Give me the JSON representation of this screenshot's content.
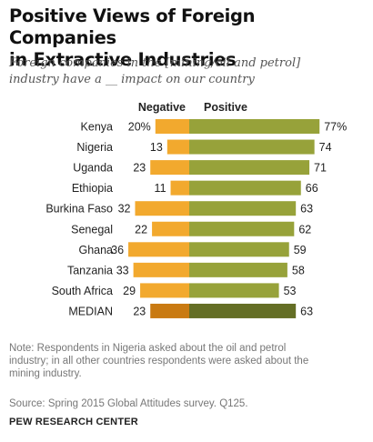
{
  "header": {
    "title_line1": "Positive Views of Foreign Companies",
    "title_line2": "in Extractive Industries",
    "subtitle_line1": "Foreign companies in the [mining/oil and petrol]",
    "subtitle_line2": "industry have a __ impact on our country"
  },
  "colors": {
    "negative": "#f2a92e",
    "positive": "#97a23a",
    "median_negative": "#c97a12",
    "median_positive": "#646e25"
  },
  "chart_data": {
    "type": "bar",
    "orientation": "horizontal-diverging",
    "title": "Positive Views of Foreign Companies in Extractive Industries",
    "categories": [
      "Kenya",
      "Nigeria",
      "Uganda",
      "Ethiopia",
      "Burkina Faso",
      "Senegal",
      "Ghana",
      "Tanzania",
      "South Africa",
      "MEDIAN"
    ],
    "series": [
      {
        "name": "Negative",
        "values": [
          20,
          13,
          23,
          11,
          32,
          22,
          36,
          33,
          29,
          23
        ]
      },
      {
        "name": "Positive",
        "values": [
          77,
          74,
          71,
          66,
          63,
          62,
          59,
          58,
          53,
          63
        ]
      }
    ],
    "value_labels": {
      "negative": [
        "20%",
        "13",
        "23",
        "11",
        "32",
        "22",
        "36",
        "33",
        "29",
        "23"
      ],
      "positive": [
        "77%",
        "74",
        "71",
        "66",
        "63",
        "62",
        "59",
        "58",
        "53",
        "63"
      ]
    },
    "legend_placement": "top",
    "grid": false
  },
  "footer": {
    "note_line1": "Note: Respondents in Nigeria asked about the oil and petrol",
    "note_line2": "industry; in all other countries respondents were asked about the",
    "note_line3": "mining industry.",
    "source": "Source: Spring 2015 Global Attitudes survey. Q125.",
    "org": "PEW RESEARCH CENTER"
  }
}
